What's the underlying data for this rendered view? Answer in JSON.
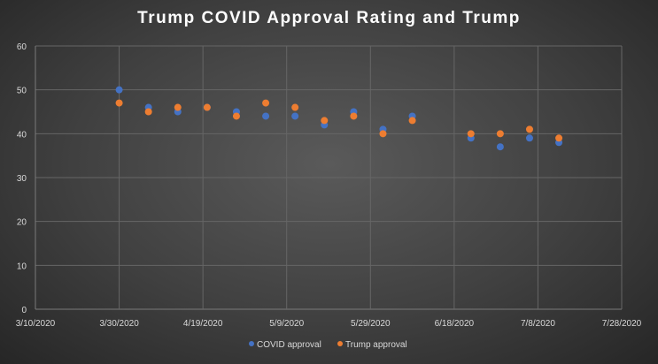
{
  "chart_data": {
    "type": "scatter",
    "title": "Trump  COVID  Approval  Rating  and  Trump",
    "xlabel": "",
    "ylabel": "",
    "x_ticks": [
      "3/10/2020",
      "3/30/2020",
      "4/19/2020",
      "5/9/2020",
      "5/29/2020",
      "6/18/2020",
      "7/8/2020",
      "7/28/2020"
    ],
    "y_ticks": [
      0,
      10,
      20,
      30,
      40,
      50,
      60
    ],
    "xlim": [
      "2020-03-10",
      "2020-07-28"
    ],
    "ylim": [
      0,
      60
    ],
    "grid": true,
    "legend_position": "bottom",
    "series": [
      {
        "name": "COVID approval",
        "color": "#4472c4",
        "points": [
          {
            "x": "2020-03-30",
            "y": 50
          },
          {
            "x": "2020-04-06",
            "y": 46
          },
          {
            "x": "2020-04-13",
            "y": 45
          },
          {
            "x": "2020-04-20",
            "y": 46
          },
          {
            "x": "2020-04-27",
            "y": 45
          },
          {
            "x": "2020-05-04",
            "y": 44
          },
          {
            "x": "2020-05-11",
            "y": 44
          },
          {
            "x": "2020-05-18",
            "y": 42
          },
          {
            "x": "2020-05-25",
            "y": 45
          },
          {
            "x": "2020-06-01",
            "y": 41
          },
          {
            "x": "2020-06-08",
            "y": 44
          },
          {
            "x": "2020-06-22",
            "y": 39
          },
          {
            "x": "2020-06-29",
            "y": 37
          },
          {
            "x": "2020-07-06",
            "y": 39
          },
          {
            "x": "2020-07-13",
            "y": 38
          }
        ]
      },
      {
        "name": "Trump approval",
        "color": "#ed7d31",
        "points": [
          {
            "x": "2020-03-30",
            "y": 47
          },
          {
            "x": "2020-04-06",
            "y": 45
          },
          {
            "x": "2020-04-13",
            "y": 46
          },
          {
            "x": "2020-04-20",
            "y": 46
          },
          {
            "x": "2020-04-27",
            "y": 44
          },
          {
            "x": "2020-05-04",
            "y": 47
          },
          {
            "x": "2020-05-11",
            "y": 46
          },
          {
            "x": "2020-05-18",
            "y": 43
          },
          {
            "x": "2020-05-25",
            "y": 44
          },
          {
            "x": "2020-06-01",
            "y": 40
          },
          {
            "x": "2020-06-08",
            "y": 43
          },
          {
            "x": "2020-06-22",
            "y": 40
          },
          {
            "x": "2020-06-29",
            "y": 40
          },
          {
            "x": "2020-07-06",
            "y": 41
          },
          {
            "x": "2020-07-13",
            "y": 39
          }
        ]
      }
    ]
  }
}
